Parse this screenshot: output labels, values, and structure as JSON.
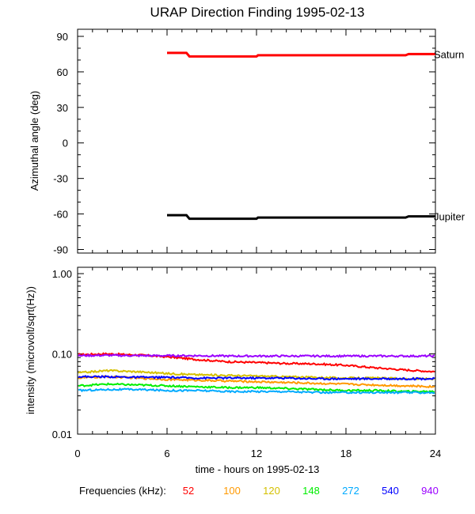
{
  "chart_data": [
    {
      "type": "line",
      "title": "URAP Direction Finding  1995-02-13",
      "ylabel": "Azimuthal angle (deg)",
      "xlim": [
        0,
        24
      ],
      "ylim": [
        -93,
        96
      ],
      "yticks": [
        90,
        60,
        30,
        0,
        -30,
        -60,
        -90
      ],
      "ytick_labels": [
        "90",
        "60",
        "30",
        "0",
        "-30",
        "-60",
        "-90"
      ],
      "xticks": [
        0,
        6,
        12,
        18,
        24
      ],
      "series": [
        {
          "name": "Saturn",
          "color": "#ff0000",
          "x": [
            6.0,
            7.3,
            7.5,
            12.0,
            12.1,
            22.0,
            22.2,
            24.0
          ],
          "y": [
            76,
            76,
            73,
            73,
            74,
            74,
            75,
            75
          ]
        },
        {
          "name": "Jupiter",
          "color": "#000000",
          "x": [
            6.0,
            7.3,
            7.5,
            12.0,
            12.1,
            22.0,
            22.2,
            24.0
          ],
          "y": [
            -61,
            -61,
            -64,
            -64,
            -63,
            -63,
            -62,
            -62
          ]
        }
      ]
    },
    {
      "type": "line",
      "yscale": "log",
      "ylabel": "intensity (microvolt/sqrt(Hz))",
      "xlabel": "time - hours on 1995-02-13",
      "xlim": [
        0,
        24
      ],
      "ylim": [
        0.01,
        1.2
      ],
      "yticks": [
        1.0,
        0.1,
        0.01
      ],
      "ytick_labels": [
        "1.00",
        "0.10",
        "0.01"
      ],
      "xticks": [
        0,
        6,
        12,
        18,
        24
      ],
      "xtick_labels": [
        "0",
        "6",
        "12",
        "18",
        "24"
      ],
      "legend_title": "Frequencies (kHz):",
      "legend_position": "bottom",
      "series": [
        {
          "name": "52",
          "color": "#ff0000",
          "x": [
            0,
            2,
            4,
            6,
            8,
            10,
            12,
            14,
            16,
            18,
            20,
            22,
            24
          ],
          "y": [
            0.098,
            0.1,
            0.097,
            0.092,
            0.085,
            0.08,
            0.078,
            0.076,
            0.075,
            0.072,
            0.067,
            0.063,
            0.06
          ]
        },
        {
          "name": "100",
          "color": "#ff9900",
          "x": [
            0,
            2,
            4,
            6,
            8,
            10,
            12,
            14,
            16,
            18,
            20,
            22,
            24
          ],
          "y": [
            0.05,
            0.052,
            0.05,
            0.048,
            0.047,
            0.046,
            0.045,
            0.044,
            0.043,
            0.042,
            0.041,
            0.04,
            0.039
          ]
        },
        {
          "name": "120",
          "color": "#d4c000",
          "x": [
            0,
            2,
            4,
            6,
            8,
            10,
            12,
            14,
            16,
            18,
            20,
            22,
            24
          ],
          "y": [
            0.058,
            0.062,
            0.06,
            0.057,
            0.055,
            0.054,
            0.053,
            0.052,
            0.051,
            0.05,
            0.05,
            0.049,
            0.049
          ]
        },
        {
          "name": "148",
          "color": "#00ee00",
          "x": [
            0,
            2,
            4,
            6,
            8,
            10,
            12,
            14,
            16,
            18,
            20,
            22,
            24
          ],
          "y": [
            0.04,
            0.042,
            0.041,
            0.04,
            0.039,
            0.038,
            0.038,
            0.037,
            0.036,
            0.035,
            0.035,
            0.034,
            0.034
          ]
        },
        {
          "name": "272",
          "color": "#00aaff",
          "x": [
            0,
            2,
            4,
            6,
            8,
            10,
            12,
            14,
            16,
            18,
            20,
            22,
            24
          ],
          "y": [
            0.035,
            0.036,
            0.036,
            0.035,
            0.035,
            0.034,
            0.034,
            0.034,
            0.033,
            0.033,
            0.033,
            0.033,
            0.033
          ]
        },
        {
          "name": "540",
          "color": "#0000ff",
          "x": [
            0,
            2,
            4,
            6,
            8,
            10,
            12,
            14,
            16,
            18,
            20,
            22,
            24
          ],
          "y": [
            0.052,
            0.052,
            0.051,
            0.051,
            0.05,
            0.05,
            0.05,
            0.05,
            0.049,
            0.049,
            0.049,
            0.049,
            0.049
          ]
        },
        {
          "name": "940",
          "color": "#9a00ff",
          "x": [
            0,
            2,
            4,
            6,
            8,
            10,
            12,
            14,
            16,
            18,
            20,
            22,
            24
          ],
          "y": [
            0.095,
            0.096,
            0.095,
            0.095,
            0.095,
            0.094,
            0.094,
            0.094,
            0.094,
            0.094,
            0.094,
            0.094,
            0.094
          ]
        }
      ]
    }
  ]
}
